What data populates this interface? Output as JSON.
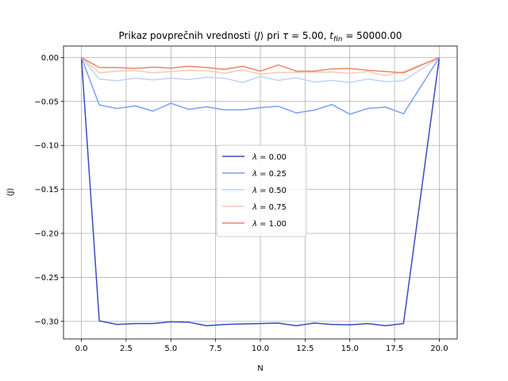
{
  "chart_data": {
    "type": "line",
    "title": "Prikaz povprečnih vrednosti ⟨J⟩ pri τ = 5.00, t_fin = 50000.00",
    "title_parts": {
      "prefix": "Prikaz povprečnih vrednosti ⟨",
      "j": "J",
      "mid": "⟩ pri ",
      "tau": "τ",
      "tau_val": " = 5.00, ",
      "t": "t",
      "fin": "fin",
      "t_val": " = 50000.00"
    },
    "xlabel": "N",
    "ylabel": "⟨J⟩",
    "xlim": [
      -1,
      21
    ],
    "ylim": [
      -0.32,
      0.013
    ],
    "grid": true,
    "legend_position": "center",
    "x_ticks": [
      0.0,
      2.5,
      5.0,
      7.5,
      10.0,
      12.5,
      15.0,
      17.5,
      20.0
    ],
    "x_tick_labels": [
      "0.0",
      "2.5",
      "5.0",
      "7.5",
      "10.0",
      "12.5",
      "15.0",
      "17.5",
      "20.0"
    ],
    "y_ticks": [
      0.0,
      -0.05,
      -0.1,
      -0.15,
      -0.2,
      -0.25,
      -0.3
    ],
    "y_tick_labels": [
      "0.00",
      "−0.05",
      "−0.10",
      "−0.15",
      "−0.20",
      "−0.25",
      "−0.30"
    ],
    "x": [
      0,
      1,
      2,
      3,
      4,
      5,
      6,
      7,
      8,
      9,
      10,
      11,
      12,
      13,
      14,
      15,
      16,
      17,
      18,
      20
    ],
    "series": [
      {
        "name": "λ = 0.00",
        "lambda_value": "0.00",
        "color": "#3b4cc0",
        "values": [
          0.0,
          -0.2995,
          -0.3035,
          -0.3025,
          -0.3025,
          -0.3005,
          -0.301,
          -0.305,
          -0.3035,
          -0.303,
          -0.3025,
          -0.302,
          -0.305,
          -0.302,
          -0.3035,
          -0.304,
          -0.3025,
          -0.305,
          -0.3025,
          0.0
        ]
      },
      {
        "name": "λ = 0.25",
        "lambda_value": "0.25",
        "color": "#7b9ff9",
        "values": [
          0.0,
          -0.054,
          -0.058,
          -0.055,
          -0.061,
          -0.052,
          -0.059,
          -0.056,
          -0.0595,
          -0.0595,
          -0.057,
          -0.0555,
          -0.063,
          -0.06,
          -0.0535,
          -0.0645,
          -0.058,
          -0.0565,
          -0.064,
          0.0
        ]
      },
      {
        "name": "λ = 0.50",
        "lambda_value": "0.50",
        "color": "#c0d4f5",
        "values": [
          0.0,
          -0.0245,
          -0.0265,
          -0.0235,
          -0.0255,
          -0.0235,
          -0.025,
          -0.0225,
          -0.0235,
          -0.0285,
          -0.0215,
          -0.026,
          -0.023,
          -0.028,
          -0.026,
          -0.0285,
          -0.0245,
          -0.0275,
          -0.0265,
          0.0
        ]
      },
      {
        "name": "λ = 0.75",
        "lambda_value": "0.75",
        "color": "#f2cbb7",
        "values": [
          0.0,
          -0.0175,
          -0.0155,
          -0.015,
          -0.0175,
          -0.016,
          -0.0145,
          -0.015,
          -0.018,
          -0.014,
          -0.019,
          -0.017,
          -0.017,
          -0.0165,
          -0.0165,
          -0.018,
          -0.016,
          -0.0205,
          -0.016,
          0.0
        ]
      },
      {
        "name": "λ = 1.00",
        "lambda_value": "1.00",
        "color": "#ee8468",
        "values": [
          0.0,
          -0.0115,
          -0.0115,
          -0.0125,
          -0.011,
          -0.012,
          -0.01,
          -0.0115,
          -0.0135,
          -0.01,
          -0.0155,
          -0.0085,
          -0.0155,
          -0.0155,
          -0.013,
          -0.0125,
          -0.0145,
          -0.016,
          -0.0175,
          0.0
        ]
      }
    ]
  }
}
